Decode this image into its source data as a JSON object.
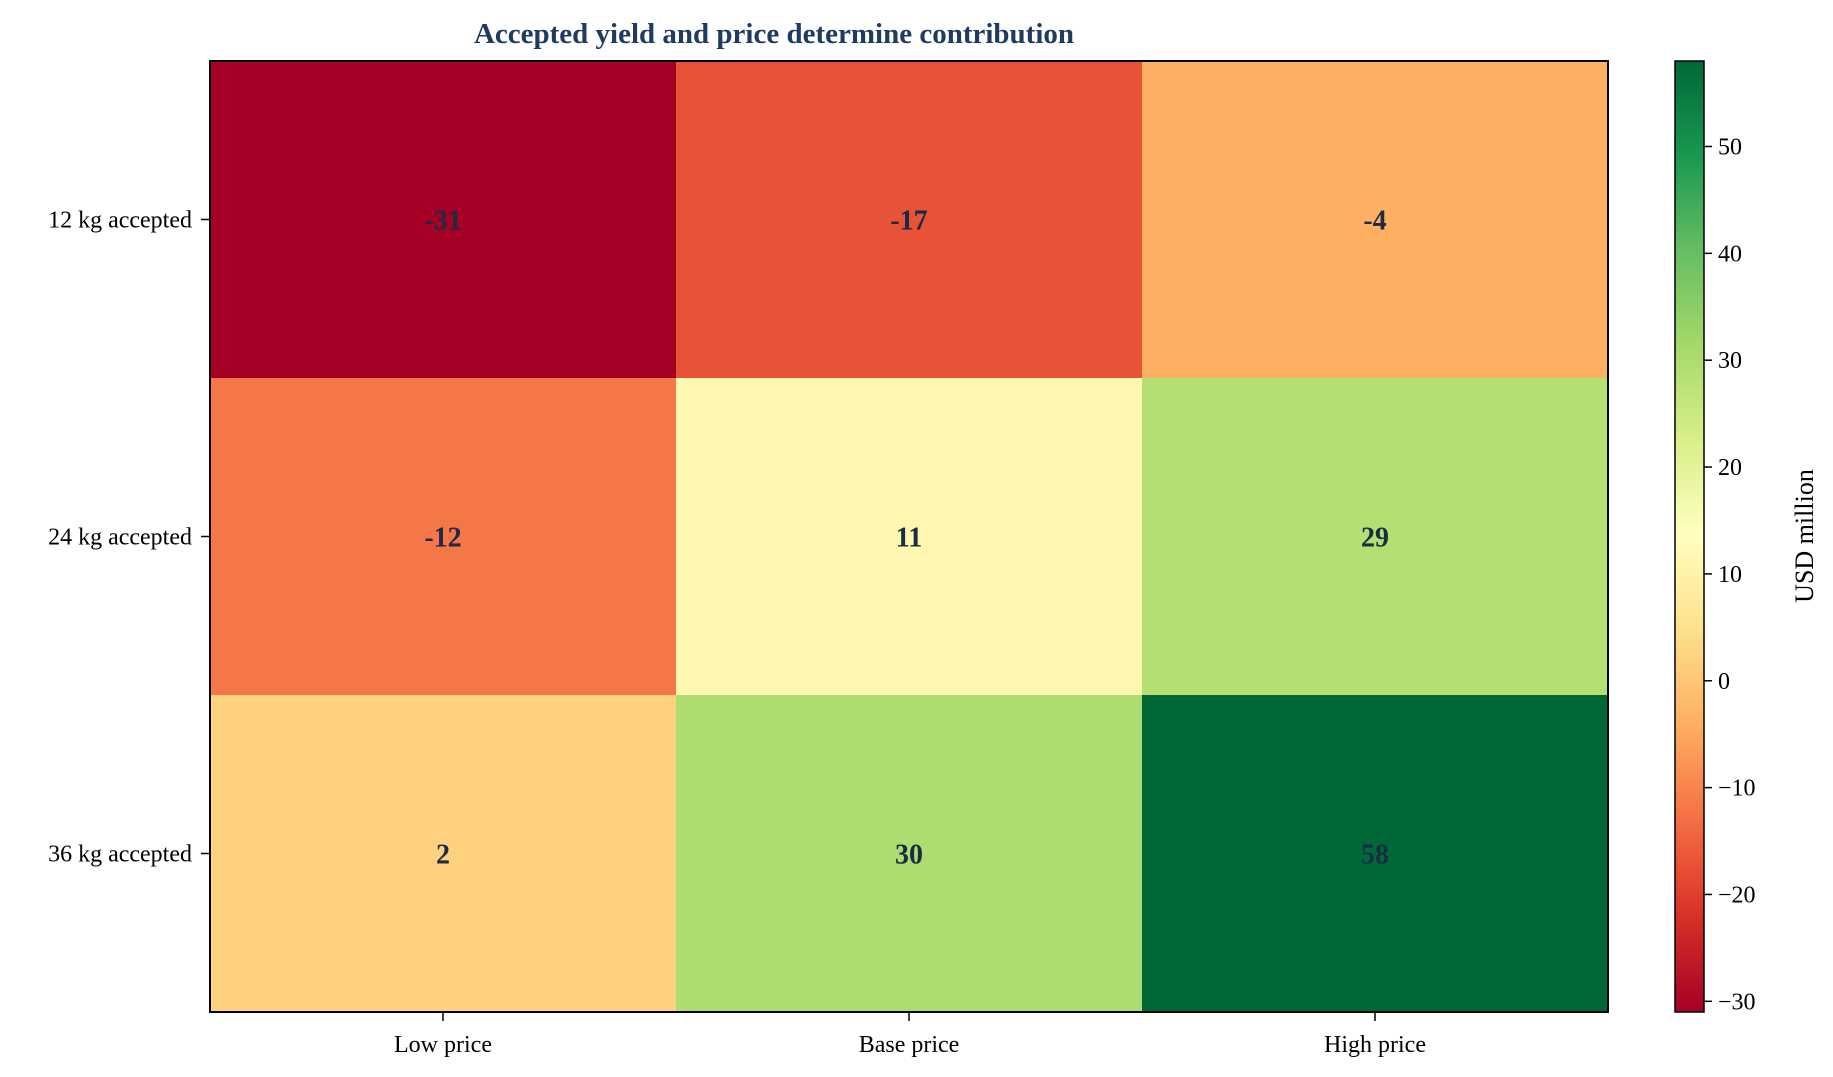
{
  "chart_data": {
    "type": "heatmap",
    "title": "Accepted yield and price determine contribution",
    "x_categories": [
      "Low price",
      "Base price",
      "High price"
    ],
    "y_categories": [
      "12 kg accepted",
      "24 kg accepted",
      "36 kg accepted"
    ],
    "values": [
      [
        -31,
        -17,
        -4
      ],
      [
        -12,
        11,
        29
      ],
      [
        2,
        30,
        58
      ]
    ],
    "colormap": "RdYlGn",
    "colorbar": {
      "label": "USD million",
      "range": [
        -31,
        58
      ],
      "ticks": [
        -30,
        -20,
        -10,
        0,
        10,
        20,
        30,
        40,
        50
      ]
    },
    "colors": {
      "title": "#1f3b63",
      "cell_text": "#1a2b44"
    }
  }
}
